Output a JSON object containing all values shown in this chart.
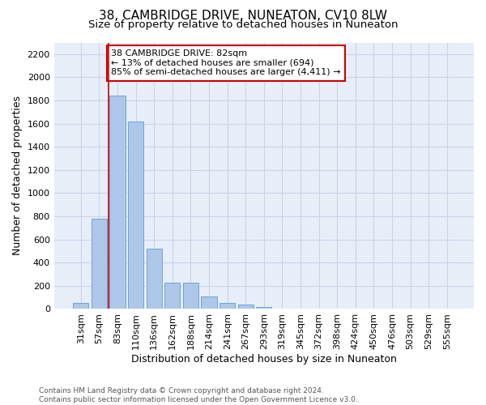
{
  "title": "38, CAMBRIDGE DRIVE, NUNEATON, CV10 8LW",
  "subtitle": "Size of property relative to detached houses in Nuneaton",
  "xlabel": "Distribution of detached houses by size in Nuneaton",
  "ylabel": "Number of detached properties",
  "bar_labels": [
    "31sqm",
    "57sqm",
    "83sqm",
    "110sqm",
    "136sqm",
    "162sqm",
    "188sqm",
    "214sqm",
    "241sqm",
    "267sqm",
    "293sqm",
    "319sqm",
    "345sqm",
    "372sqm",
    "398sqm",
    "424sqm",
    "450sqm",
    "476sqm",
    "503sqm",
    "529sqm",
    "555sqm"
  ],
  "bar_values": [
    50,
    780,
    1840,
    1615,
    520,
    230,
    230,
    105,
    55,
    40,
    20,
    0,
    0,
    0,
    0,
    0,
    0,
    0,
    0,
    0,
    0
  ],
  "bar_color": "#aec6e8",
  "bar_edge_color": "#5a9fd4",
  "vline_color": "#cc0000",
  "annotation_text": "38 CAMBRIDGE DRIVE: 82sqm\n← 13% of detached houses are smaller (694)\n85% of semi-detached houses are larger (4,411) →",
  "annotation_box_color": "#ffffff",
  "annotation_box_edge": "#cc0000",
  "ylim": [
    0,
    2300
  ],
  "yticks": [
    0,
    200,
    400,
    600,
    800,
    1000,
    1200,
    1400,
    1600,
    1800,
    2000,
    2200
  ],
  "title_fontsize": 11,
  "subtitle_fontsize": 9.5,
  "xlabel_fontsize": 9,
  "ylabel_fontsize": 9,
  "tick_fontsize": 8,
  "annot_fontsize": 8,
  "footer": "Contains HM Land Registry data © Crown copyright and database right 2024.\nContains public sector information licensed under the Open Government Licence v3.0.",
  "footer_fontsize": 6.5,
  "grid_color": "#c8d4e8",
  "bg_color": "#e8eef8"
}
